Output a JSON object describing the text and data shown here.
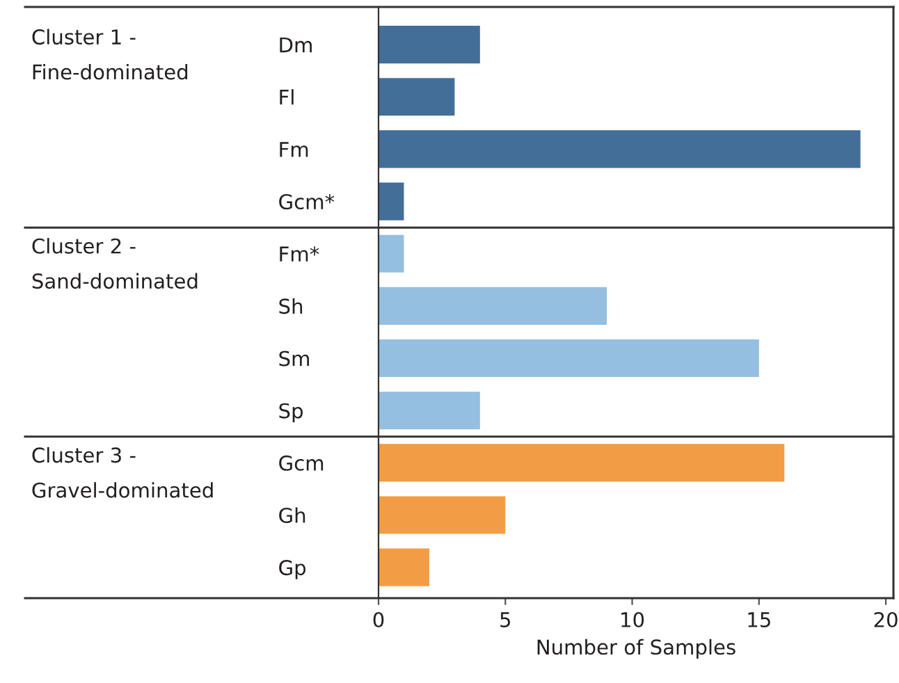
{
  "chart_data": {
    "type": "bar",
    "orientation": "horizontal",
    "xlabel": "Number of Samples",
    "categories": [
      "Dm",
      "Fl",
      "Fm",
      "Gcm*",
      "Fm*",
      "Sh",
      "Sm",
      "Sp",
      "Gcm",
      "Gh",
      "Gp"
    ],
    "series": [
      {
        "color": "#426e97",
        "values": [
          4,
          3,
          19,
          1,
          null,
          null,
          null,
          null,
          null,
          null,
          null
        ]
      },
      {
        "color": "#95bfe0",
        "values": [
          null,
          null,
          null,
          null,
          1,
          9,
          15,
          4,
          null,
          null,
          null
        ]
      },
      {
        "color": "#f29d45",
        "values": [
          null,
          null,
          null,
          null,
          null,
          null,
          null,
          null,
          16,
          5,
          2
        ]
      }
    ],
    "annotations": [
      "Cluster 1 -\nFine-dominated",
      "Cluster 2 -\nSand-dominated",
      "Cluster 3 -\nGravel-dominated"
    ],
    "xlim": [
      0,
      20.3
    ],
    "xticks": [
      0,
      5,
      10,
      15,
      20
    ],
    "grid": false,
    "legend": false
  }
}
